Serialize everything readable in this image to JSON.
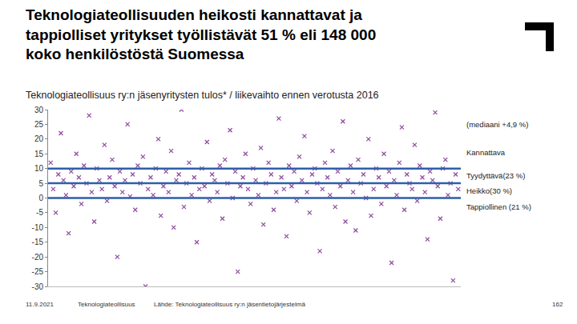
{
  "chart_data": {
    "type": "scatter",
    "title": "Teknologiateollisuuden heikosti kannattavat ja tappiolliset yritykset työllistävät 51 % eli 148 000 koko henkilöstöstä Suomessa",
    "subtitle": "Teknologiateollisuus ry:n jäsenyritysten tulos* / liikevaihto ennen verotusta 2016",
    "marker": "x",
    "color": "#8e4a9e",
    "tick_labels": "y",
    "grid": false,
    "xlim": [
      0,
      161
    ],
    "ylim": [
      -30,
      30
    ],
    "yticks": [
      -30,
      -25,
      -20,
      -15,
      -10,
      -5,
      0,
      5,
      10,
      15,
      20,
      25,
      30
    ],
    "thresholds": [
      10,
      5,
      0
    ],
    "threshold_color": "#2e5fa8",
    "annotations": [
      {
        "text": "(mediaani +4,9 %)",
        "y": 25
      },
      {
        "text": "Kannattava",
        "y": 15.5
      },
      {
        "text": "Tyydyttävä(23 %)",
        "y": 7.5
      },
      {
        "text": "Heikko(30 %)",
        "y": 2.5
      },
      {
        "text": "Tappiollinen (21 %)",
        "y": -3
      }
    ],
    "footer": [
      "11.9.2021",
      "Teknologiateollisuus",
      "Lähde: Teknologiateollisuus ry:n jäsentietojärjestelmä",
      "162"
    ],
    "x": [
      1,
      2,
      3,
      4,
      5,
      6,
      7,
      8,
      9,
      10,
      11,
      12,
      13,
      14,
      15,
      16,
      17,
      18,
      19,
      20,
      21,
      22,
      23,
      24,
      25,
      26,
      27,
      28,
      29,
      30,
      31,
      32,
      33,
      34,
      35,
      36,
      37,
      38,
      39,
      40,
      41,
      42,
      43,
      44,
      45,
      46,
      47,
      48,
      49,
      50,
      51,
      52,
      53,
      54,
      55,
      56,
      57,
      58,
      59,
      60,
      61,
      62,
      63,
      64,
      65,
      66,
      67,
      68,
      69,
      70,
      71,
      72,
      73,
      74,
      75,
      76,
      77,
      78,
      79,
      80,
      81,
      82,
      83,
      84,
      85,
      86,
      87,
      88,
      89,
      90,
      91,
      92,
      93,
      94,
      95,
      96,
      97,
      98,
      99,
      100,
      101,
      102,
      103,
      104,
      105,
      106,
      107,
      108,
      109,
      110,
      111,
      112,
      113,
      114,
      115,
      116,
      117,
      118,
      119,
      120,
      121,
      122,
      123,
      124,
      125,
      126,
      127,
      128,
      129,
      130,
      131,
      132,
      133,
      134,
      135,
      136,
      137,
      138,
      139,
      140,
      141,
      142,
      143,
      144,
      145,
      146,
      147,
      148,
      149,
      150,
      151,
      152,
      153,
      154,
      155,
      156,
      157,
      158,
      159,
      160
    ],
    "values": [
      12,
      3,
      -5,
      8,
      22,
      6,
      1,
      -12,
      9,
      4,
      15,
      7,
      -2,
      11,
      5,
      28,
      2,
      -8,
      10,
      6,
      3,
      18,
      -1,
      7,
      13,
      4,
      -20,
      9,
      2,
      6,
      25,
      0.5,
      8,
      -4,
      11,
      5,
      14,
      -30,
      3,
      7,
      1,
      10,
      20,
      -6,
      4,
      9,
      2,
      16,
      -10,
      6,
      8,
      30,
      -3,
      5,
      12,
      1,
      7,
      -15,
      3,
      10,
      4,
      19,
      -1,
      8,
      6,
      2,
      11,
      -7,
      13,
      5,
      23,
      0,
      9,
      -25,
      4,
      7,
      15,
      3,
      -2,
      10,
      6,
      1,
      17,
      -9,
      5,
      12,
      8,
      -4,
      2,
      27,
      7,
      3,
      -13,
      11,
      4,
      9,
      -1,
      14,
      6,
      21,
      2,
      -5,
      8,
      10,
      5,
      -18,
      3,
      12,
      7,
      1,
      16,
      -3,
      9,
      4,
      26,
      -8,
      6,
      11,
      2,
      -11,
      13,
      5,
      8,
      0,
      20,
      -6,
      3,
      10,
      7,
      -2,
      15,
      4,
      9,
      -22,
      6,
      1,
      12,
      24,
      -4,
      8,
      5,
      3,
      18,
      -1,
      11,
      7,
      2,
      -14,
      9,
      6,
      29,
      4,
      -7,
      10,
      13,
      1,
      5,
      -28,
      8,
      3
    ]
  }
}
